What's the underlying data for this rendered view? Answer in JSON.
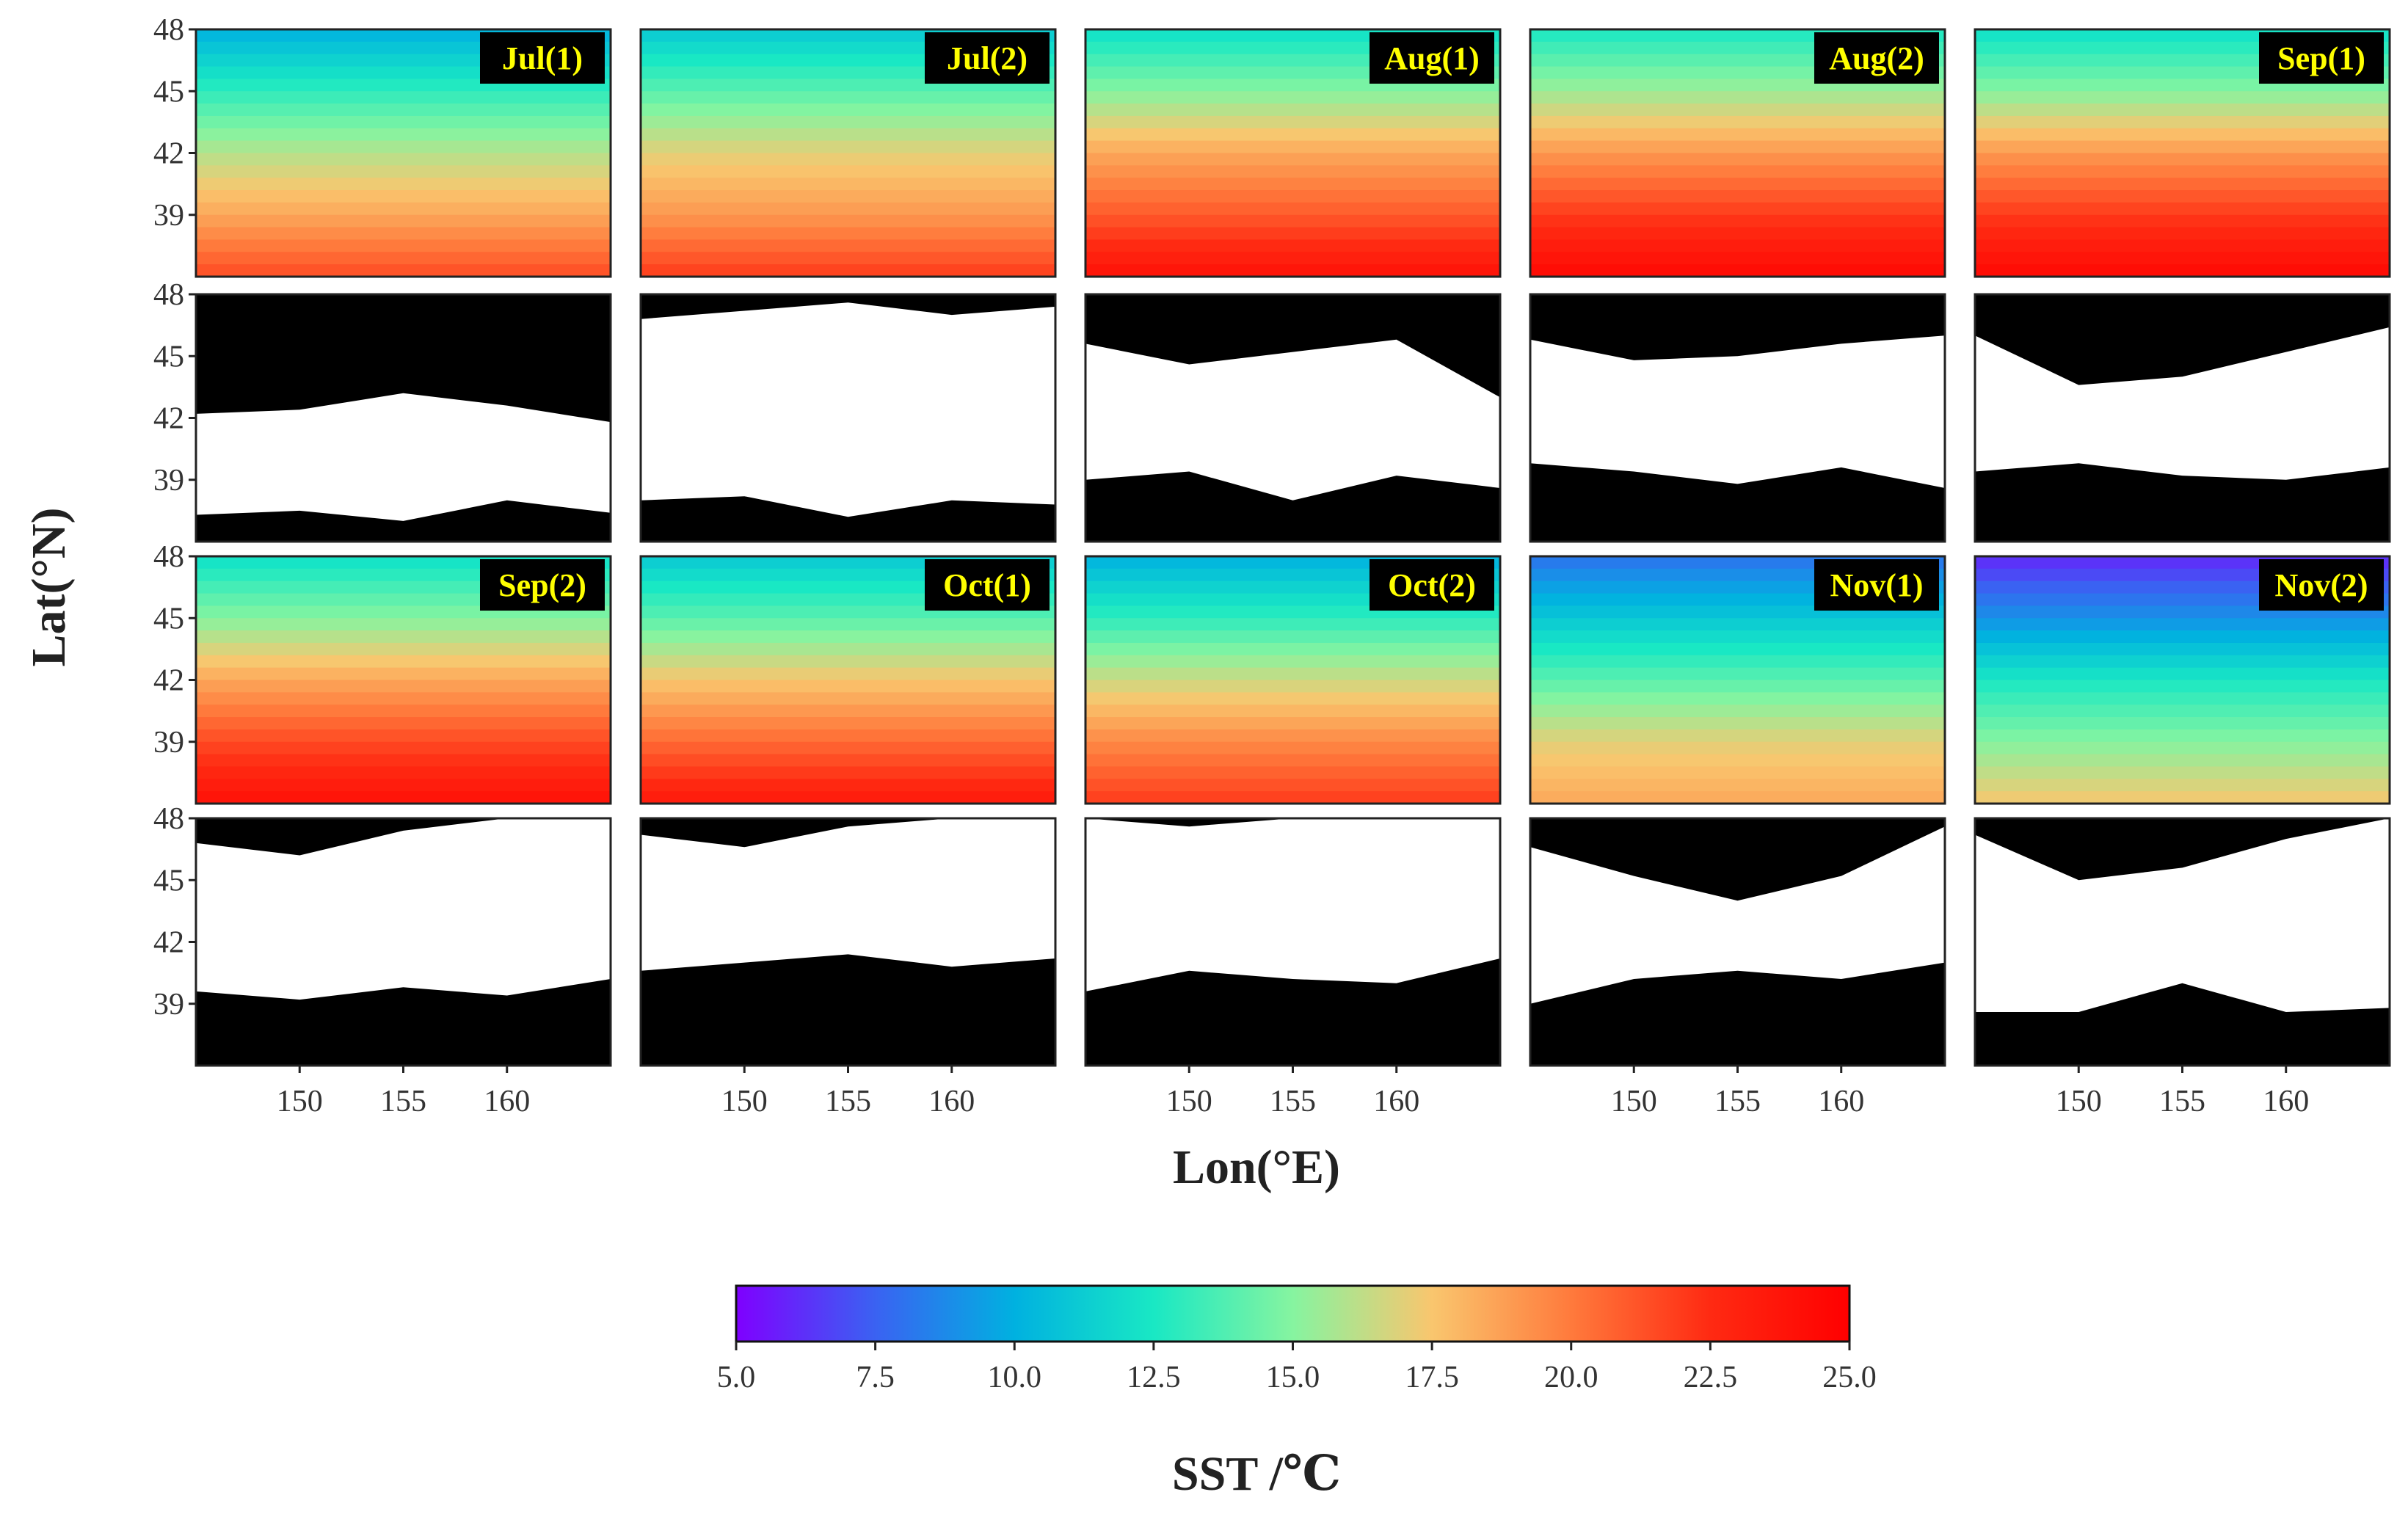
{
  "chart_data": {
    "type": "heatmap",
    "title": "",
    "xlabel": "Lon(°E)",
    "ylabel": "Lat(°N)",
    "xlim": [
      145,
      165
    ],
    "ylim": [
      36,
      48
    ],
    "x_ticks": [
      "150",
      "155",
      "160"
    ],
    "x_tick_values": [
      150,
      155,
      160
    ],
    "y_ticks": [
      "48",
      "45",
      "42",
      "39"
    ],
    "y_tick_values": [
      48,
      45,
      42,
      39
    ],
    "colorbar": {
      "label": "SST /℃",
      "range": [
        5.0,
        25.0
      ],
      "ticks": [
        "5.0",
        "7.5",
        "10.0",
        "12.5",
        "15.0",
        "17.5",
        "20.0",
        "22.5",
        "25.0"
      ],
      "tick_values": [
        5.0,
        7.5,
        10.0,
        12.5,
        15.0,
        17.5,
        20.0,
        22.5,
        25.0
      ],
      "colors": [
        "#7f00ff",
        "#3a62f2",
        "#00b1e0",
        "#19e8c4",
        "#86f4a0",
        "#f9c66e",
        "#ff7a3c",
        "#ff2a12",
        "#ff0000"
      ]
    },
    "panels": [
      {
        "label": "Jul(1)",
        "sst_mean": [
          10.0,
          13.0,
          16.0,
          18.5,
          21.5
        ],
        "mask_front": [
          42.2,
          42.4,
          43.2,
          42.6,
          41.8
        ],
        "mask_bottom": [
          37.3,
          37.5,
          37.0,
          38.0,
          37.4
        ]
      },
      {
        "label": "Jul(2)",
        "sst_mean": [
          11.0,
          14.0,
          17.0,
          19.0,
          22.0
        ],
        "mask_front": [
          46.8,
          47.2,
          47.6,
          47.0,
          47.4
        ],
        "mask_bottom": [
          38.0,
          38.2,
          37.2,
          38.0,
          37.8
        ]
      },
      {
        "label": "Aug(1)",
        "sst_mean": [
          12.0,
          15.0,
          18.5,
          21.0,
          24.0
        ],
        "mask_front": [
          45.6,
          44.6,
          45.2,
          45.8,
          43.0
        ],
        "mask_bottom": [
          39.0,
          39.4,
          38.0,
          39.2,
          38.6
        ]
      },
      {
        "label": "Aug(2)",
        "sst_mean": [
          12.5,
          15.5,
          19.0,
          22.0,
          24.5
        ],
        "mask_front": [
          45.8,
          44.8,
          45.0,
          45.6,
          46.0
        ],
        "mask_bottom": [
          39.8,
          39.4,
          38.8,
          39.6,
          38.6
        ]
      },
      {
        "label": "Sep(1)",
        "sst_mean": [
          12.0,
          15.0,
          19.0,
          22.0,
          24.5
        ],
        "mask_front": [
          46.0,
          43.6,
          44.0,
          45.2,
          46.4
        ],
        "mask_bottom": [
          39.4,
          39.8,
          39.2,
          39.0,
          39.6
        ]
      },
      {
        "label": "Sep(2)",
        "sst_mean": [
          12.0,
          15.0,
          18.5,
          21.5,
          24.0
        ],
        "mask_front": [
          46.8,
          46.2,
          47.4,
          48.0,
          48.0
        ],
        "mask_bottom": [
          39.6,
          39.2,
          39.8,
          39.4,
          40.2
        ]
      },
      {
        "label": "Oct(1)",
        "sst_mean": [
          11.0,
          14.0,
          17.5,
          20.5,
          23.5
        ],
        "mask_front": [
          47.2,
          46.6,
          47.6,
          48.0,
          48.0
        ],
        "mask_bottom": [
          40.6,
          41.0,
          41.4,
          40.8,
          41.2
        ]
      },
      {
        "label": "Oct(2)",
        "sst_mean": [
          10.0,
          13.0,
          16.5,
          19.5,
          22.0
        ],
        "mask_front": [
          48.0,
          47.6,
          48.0,
          48.0,
          48.0
        ],
        "mask_bottom": [
          39.6,
          40.6,
          40.2,
          40.0,
          41.2
        ]
      },
      {
        "label": "Nov(1)",
        "sst_mean": [
          8.0,
          11.0,
          14.0,
          17.0,
          18.5
        ],
        "mask_front": [
          46.6,
          45.2,
          44.0,
          45.2,
          47.6
        ],
        "mask_bottom": [
          39.0,
          40.2,
          40.6,
          40.2,
          41.0
        ]
      },
      {
        "label": "Nov(2)",
        "sst_mean": [
          6.0,
          9.0,
          12.5,
          15.0,
          17.5
        ],
        "mask_front": [
          47.2,
          45.0,
          45.6,
          47.0,
          48.0
        ],
        "mask_bottom": [
          38.6,
          38.6,
          40.0,
          38.6,
          38.8
        ]
      }
    ]
  }
}
